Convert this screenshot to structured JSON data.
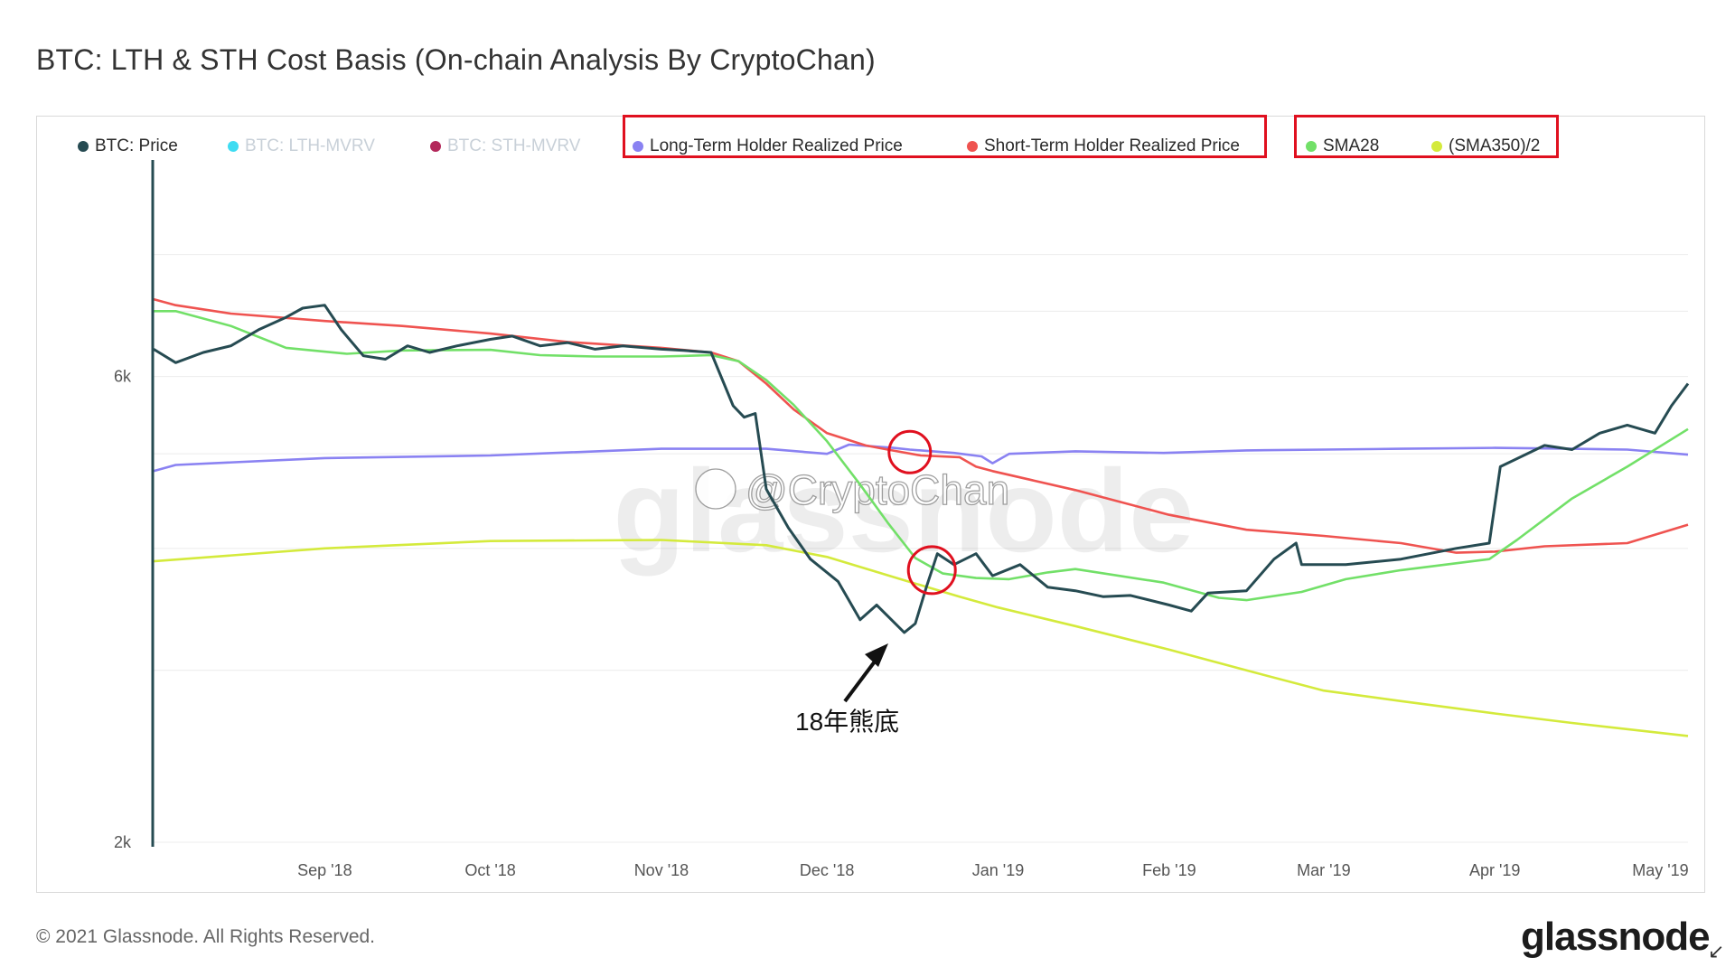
{
  "title": "BTC: LTH & STH Cost Basis (On-chain Analysis By CryptoChan)",
  "footer": "© 2021 Glassnode. All Rights Reserved.",
  "logo_text": "glassnode",
  "watermark": {
    "text": "glassnode",
    "weibo": "@CryptoChan"
  },
  "annotation": {
    "text": "18年熊底",
    "circle_color": "#e0101f"
  },
  "legend": [
    {
      "label": "BTC: Price",
      "color": "#264b52",
      "enabled": true
    },
    {
      "label": "BTC: LTH-MVRV",
      "color": "#3fdcf2",
      "enabled": false
    },
    {
      "label": "BTC: STH-MVRV",
      "color": "#b3285a",
      "enabled": false
    },
    {
      "label": "Long-Term Holder Realized Price",
      "color": "#8a82f2",
      "enabled": true
    },
    {
      "label": "Short-Term Holder Realized Price",
      "color": "#ef5350",
      "enabled": true
    },
    {
      "label": "SMA28",
      "color": "#72e068",
      "enabled": true
    },
    {
      "label": "(SMA350)/2",
      "color": "#d4ea3c",
      "enabled": true
    }
  ],
  "chart_data": {
    "type": "line",
    "title": "BTC: LTH & STH Cost Basis (On-chain Analysis By CryptoChan)",
    "yscale": "log",
    "ylim": [
      2000,
      10000
    ],
    "y_ticks": [
      {
        "value": 2000,
        "label": "2k"
      },
      {
        "value": 6000,
        "label": "6k"
      }
    ],
    "x_range": [
      "2018-08-01",
      "2019-05-06"
    ],
    "x_ticks": [
      {
        "date": "2018-09-01",
        "label": "Sep '18"
      },
      {
        "date": "2018-10-01",
        "label": "Oct '18"
      },
      {
        "date": "2018-11-01",
        "label": "Nov '18"
      },
      {
        "date": "2018-12-01",
        "label": "Dec '18"
      },
      {
        "date": "2019-01-01",
        "label": "Jan '19"
      },
      {
        "date": "2019-02-01",
        "label": "Feb '19"
      },
      {
        "date": "2019-03-01",
        "label": "Mar '19"
      },
      {
        "date": "2019-04-01",
        "label": "Apr '19"
      },
      {
        "date": "2019-05-01",
        "label": "May '19"
      }
    ],
    "grid": "horizontal",
    "legend_position": "top",
    "series": [
      {
        "name": "(SMA350)/2",
        "color": "#d4ea3c",
        "points": [
          [
            "2018-08-01",
            3880
          ],
          [
            "2018-09-01",
            4000
          ],
          [
            "2018-10-01",
            4070
          ],
          [
            "2018-11-01",
            4080
          ],
          [
            "2018-11-20",
            4030
          ],
          [
            "2018-12-01",
            3920
          ],
          [
            "2018-12-15",
            3710
          ],
          [
            "2018-12-25",
            3570
          ],
          [
            "2019-01-01",
            3480
          ],
          [
            "2019-01-15",
            3330
          ],
          [
            "2019-02-01",
            3150
          ],
          [
            "2019-02-15",
            3000
          ],
          [
            "2019-03-01",
            2860
          ],
          [
            "2019-03-15",
            2790
          ],
          [
            "2019-04-01",
            2710
          ],
          [
            "2019-04-15",
            2650
          ],
          [
            "2019-05-06",
            2570
          ]
        ]
      },
      {
        "name": "Long-Term Holder Realized Price",
        "color": "#8a82f2",
        "points": [
          [
            "2018-08-01",
            4800
          ],
          [
            "2018-08-05",
            4870
          ],
          [
            "2018-09-01",
            4950
          ],
          [
            "2018-10-01",
            4980
          ],
          [
            "2018-11-01",
            5060
          ],
          [
            "2018-11-20",
            5060
          ],
          [
            "2018-12-01",
            5000
          ],
          [
            "2018-12-05",
            5110
          ],
          [
            "2018-12-13",
            5070
          ],
          [
            "2018-12-16",
            5050
          ],
          [
            "2018-12-24",
            5010
          ],
          [
            "2018-12-29",
            4970
          ],
          [
            "2018-12-31",
            4890
          ],
          [
            "2019-01-03",
            5000
          ],
          [
            "2019-01-15",
            5030
          ],
          [
            "2019-01-31",
            5010
          ],
          [
            "2019-02-15",
            5040
          ],
          [
            "2019-03-01",
            5050
          ],
          [
            "2019-03-15",
            5060
          ],
          [
            "2019-04-01",
            5070
          ],
          [
            "2019-04-15",
            5060
          ],
          [
            "2019-04-25",
            5050
          ],
          [
            "2019-05-06",
            4990
          ]
        ]
      },
      {
        "name": "Short-Term Holder Realized Price",
        "color": "#ef5350",
        "points": [
          [
            "2018-08-01",
            7200
          ],
          [
            "2018-08-05",
            7100
          ],
          [
            "2018-08-15",
            6960
          ],
          [
            "2018-09-01",
            6840
          ],
          [
            "2018-09-15",
            6760
          ],
          [
            "2018-10-01",
            6640
          ],
          [
            "2018-10-15",
            6510
          ],
          [
            "2018-11-01",
            6420
          ],
          [
            "2018-11-10",
            6350
          ],
          [
            "2018-11-15",
            6220
          ],
          [
            "2018-11-20",
            5900
          ],
          [
            "2018-11-25",
            5550
          ],
          [
            "2018-12-01",
            5250
          ],
          [
            "2018-12-08",
            5100
          ],
          [
            "2018-12-12",
            5050
          ],
          [
            "2018-12-18",
            4980
          ],
          [
            "2018-12-25",
            4960
          ],
          [
            "2018-12-28",
            4850
          ],
          [
            "2018-12-31",
            4800
          ],
          [
            "2019-01-15",
            4590
          ],
          [
            "2019-02-01",
            4330
          ],
          [
            "2019-02-15",
            4180
          ],
          [
            "2019-03-01",
            4120
          ],
          [
            "2019-03-15",
            4050
          ],
          [
            "2019-03-25",
            3960
          ],
          [
            "2019-04-01",
            3970
          ],
          [
            "2019-04-10",
            4020
          ],
          [
            "2019-04-25",
            4050
          ],
          [
            "2019-05-06",
            4230
          ]
        ]
      },
      {
        "name": "SMA28",
        "color": "#72e068",
        "points": [
          [
            "2018-08-01",
            7000
          ],
          [
            "2018-08-05",
            7000
          ],
          [
            "2018-08-15",
            6760
          ],
          [
            "2018-08-25",
            6420
          ],
          [
            "2018-09-05",
            6330
          ],
          [
            "2018-09-15",
            6380
          ],
          [
            "2018-10-01",
            6390
          ],
          [
            "2018-10-10",
            6310
          ],
          [
            "2018-10-20",
            6290
          ],
          [
            "2018-11-01",
            6290
          ],
          [
            "2018-11-10",
            6310
          ],
          [
            "2018-11-15",
            6220
          ],
          [
            "2018-11-20",
            5950
          ],
          [
            "2018-11-25",
            5610
          ],
          [
            "2018-12-01",
            5150
          ],
          [
            "2018-12-07",
            4650
          ],
          [
            "2018-12-12",
            4250
          ],
          [
            "2018-12-17",
            3910
          ],
          [
            "2018-12-22",
            3770
          ],
          [
            "2018-12-28",
            3730
          ],
          [
            "2019-01-03",
            3720
          ],
          [
            "2019-01-10",
            3780
          ],
          [
            "2019-01-15",
            3810
          ],
          [
            "2019-01-31",
            3690
          ],
          [
            "2019-02-10",
            3560
          ],
          [
            "2019-02-15",
            3540
          ],
          [
            "2019-02-25",
            3610
          ],
          [
            "2019-03-05",
            3720
          ],
          [
            "2019-03-15",
            3800
          ],
          [
            "2019-03-31",
            3900
          ],
          [
            "2019-04-05",
            4080
          ],
          [
            "2019-04-15",
            4500
          ],
          [
            "2019-04-25",
            4850
          ],
          [
            "2019-05-06",
            5300
          ]
        ]
      },
      {
        "name": "BTC: Price",
        "color": "#264b52",
        "points": [
          [
            "2018-08-01",
            6400
          ],
          [
            "2018-08-05",
            6200
          ],
          [
            "2018-08-10",
            6350
          ],
          [
            "2018-08-15",
            6450
          ],
          [
            "2018-08-20",
            6700
          ],
          [
            "2018-08-25",
            6900
          ],
          [
            "2018-08-28",
            7050
          ],
          [
            "2018-09-01",
            7100
          ],
          [
            "2018-09-04",
            6700
          ],
          [
            "2018-09-08",
            6300
          ],
          [
            "2018-09-12",
            6250
          ],
          [
            "2018-09-16",
            6450
          ],
          [
            "2018-09-20",
            6350
          ],
          [
            "2018-09-25",
            6450
          ],
          [
            "2018-10-01",
            6550
          ],
          [
            "2018-10-05",
            6600
          ],
          [
            "2018-10-10",
            6450
          ],
          [
            "2018-10-15",
            6500
          ],
          [
            "2018-10-20",
            6400
          ],
          [
            "2018-10-25",
            6450
          ],
          [
            "2018-11-01",
            6400
          ],
          [
            "2018-11-05",
            6380
          ],
          [
            "2018-11-10",
            6350
          ],
          [
            "2018-11-14",
            5600
          ],
          [
            "2018-11-16",
            5450
          ],
          [
            "2018-11-18",
            5500
          ],
          [
            "2018-11-20",
            4600
          ],
          [
            "2018-11-24",
            4200
          ],
          [
            "2018-11-28",
            3900
          ],
          [
            "2018-12-03",
            3700
          ],
          [
            "2018-12-07",
            3380
          ],
          [
            "2018-12-10",
            3500
          ],
          [
            "2018-12-15",
            3280
          ],
          [
            "2018-12-17",
            3350
          ],
          [
            "2018-12-19",
            3650
          ],
          [
            "2018-12-21",
            3950
          ],
          [
            "2018-12-24",
            3850
          ],
          [
            "2018-12-28",
            3950
          ],
          [
            "2018-12-31",
            3750
          ],
          [
            "2019-01-05",
            3850
          ],
          [
            "2019-01-10",
            3650
          ],
          [
            "2019-01-15",
            3620
          ],
          [
            "2019-01-20",
            3570
          ],
          [
            "2019-01-25",
            3580
          ],
          [
            "2019-02-01",
            3500
          ],
          [
            "2019-02-05",
            3450
          ],
          [
            "2019-02-08",
            3600
          ],
          [
            "2019-02-15",
            3620
          ],
          [
            "2019-02-20",
            3900
          ],
          [
            "2019-02-24",
            4050
          ],
          [
            "2019-02-25",
            3850
          ],
          [
            "2019-03-05",
            3850
          ],
          [
            "2019-03-15",
            3900
          ],
          [
            "2019-03-25",
            4000
          ],
          [
            "2019-03-31",
            4050
          ],
          [
            "2019-04-02",
            4850
          ],
          [
            "2019-04-10",
            5100
          ],
          [
            "2019-04-15",
            5050
          ],
          [
            "2019-04-20",
            5250
          ],
          [
            "2019-04-25",
            5350
          ],
          [
            "2019-04-30",
            5250
          ],
          [
            "2019-05-03",
            5600
          ],
          [
            "2019-05-06",
            5900
          ]
        ]
      }
    ]
  }
}
